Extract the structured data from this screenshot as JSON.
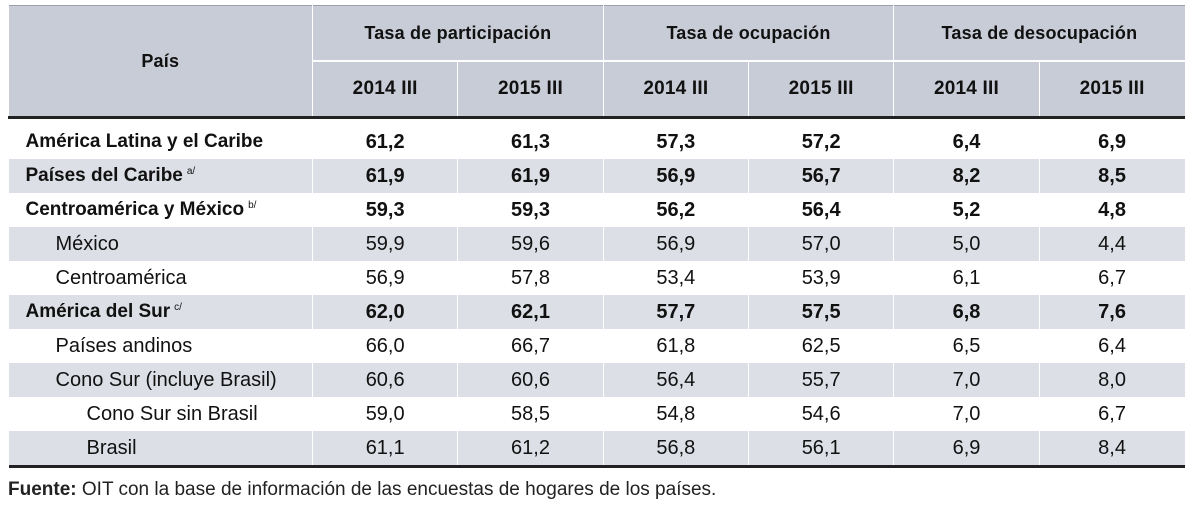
{
  "header": {
    "pais": "País",
    "groups": [
      "Tasa de participación",
      "Tasa de ocupación",
      "Tasa de desocupación"
    ],
    "periods": [
      "2014 III",
      "2015 III",
      "2014 III",
      "2015 III",
      "2014 III",
      "2015 III"
    ]
  },
  "rows": [
    {
      "label": "América Latina y el Caribe",
      "note": "",
      "values": [
        "61,2",
        "61,3",
        "57,3",
        "57,2",
        "6,4",
        "6,9"
      ]
    },
    {
      "label": "Países del Caribe",
      "note": "a/",
      "values": [
        "61,9",
        "61,9",
        "56,9",
        "56,7",
        "8,2",
        "8,5"
      ]
    },
    {
      "label": "Centroamérica y México",
      "note": "b/",
      "values": [
        "59,3",
        "59,3",
        "56,2",
        "56,4",
        "5,2",
        "4,8"
      ]
    },
    {
      "label": "México",
      "note": "",
      "values": [
        "59,9",
        "59,6",
        "56,9",
        "57,0",
        "5,0",
        "4,4"
      ]
    },
    {
      "label": "Centroamérica",
      "note": "",
      "values": [
        "56,9",
        "57,8",
        "53,4",
        "53,9",
        "6,1",
        "6,7"
      ]
    },
    {
      "label": "América del Sur",
      "note": "c/",
      "values": [
        "62,0",
        "62,1",
        "57,7",
        "57,5",
        "6,8",
        "7,6"
      ]
    },
    {
      "label": "Países andinos",
      "note": "",
      "values": [
        "66,0",
        "66,7",
        "61,8",
        "62,5",
        "6,5",
        "6,4"
      ]
    },
    {
      "label": "Cono Sur (incluye Brasil)",
      "note": "",
      "values": [
        "60,6",
        "60,6",
        "56,4",
        "55,7",
        "7,0",
        "8,0"
      ]
    },
    {
      "label": "Cono Sur sin Brasil",
      "note": "",
      "values": [
        "59,0",
        "58,5",
        "54,8",
        "54,6",
        "7,0",
        "6,7"
      ]
    },
    {
      "label": "Brasil",
      "note": "",
      "values": [
        "61,1",
        "61,2",
        "56,8",
        "56,1",
        "6,9",
        "8,4"
      ]
    }
  ],
  "footer": {
    "label": "Fuente:",
    "text": "OIT con la base de información de las encuestas de hogares de los países."
  },
  "colors": {
    "header_bg": "#c8ccd6",
    "shade_bg": "#dcdfe6"
  }
}
